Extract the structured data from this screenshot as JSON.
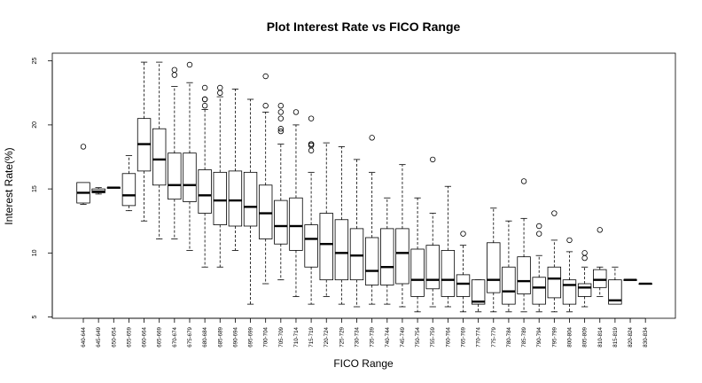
{
  "chart_data": {
    "type": "boxplot",
    "title": "Plot Interest Rate vs FICO Range",
    "xlabel": "FICO Range",
    "ylabel": "Interest Rate(%)",
    "ylim": [
      4.9,
      25.6
    ],
    "yticks": [
      5,
      10,
      15,
      20,
      25
    ],
    "categories": [
      "640-644",
      "645-649",
      "650-654",
      "655-659",
      "660-664",
      "665-669",
      "670-674",
      "675-679",
      "680-684",
      "685-689",
      "690-694",
      "695-699",
      "700-704",
      "705-709",
      "710-714",
      "715-719",
      "720-724",
      "725-729",
      "730-734",
      "735-739",
      "740-744",
      "745-749",
      "750-754",
      "755-759",
      "760-764",
      "765-769",
      "770-774",
      "775-779",
      "780-784",
      "785-789",
      "790-794",
      "795-799",
      "800-804",
      "805-809",
      "810-814",
      "815-819",
      "820-824",
      "830-834"
    ],
    "boxes": [
      {
        "low": 13.8,
        "q1": 13.9,
        "median": 14.7,
        "q3": 15.5,
        "high": 15.5,
        "outliers": [
          18.3
        ]
      },
      {
        "low": 14.6,
        "q1": 14.7,
        "median": 14.8,
        "q3": 15.0,
        "high": 15.1,
        "outliers": []
      },
      {
        "low": 15.1,
        "q1": 15.1,
        "median": 15.1,
        "q3": 15.1,
        "high": 15.1,
        "outliers": []
      },
      {
        "low": 13.3,
        "q1": 13.7,
        "median": 14.5,
        "q3": 16.2,
        "high": 17.6,
        "outliers": []
      },
      {
        "low": 12.5,
        "q1": 16.4,
        "median": 18.5,
        "q3": 20.5,
        "high": 24.9,
        "outliers": []
      },
      {
        "low": 11.1,
        "q1": 15.3,
        "median": 17.3,
        "q3": 19.7,
        "high": 24.9,
        "outliers": []
      },
      {
        "low": 11.1,
        "q1": 14.2,
        "median": 15.3,
        "q3": 17.8,
        "high": 23.0,
        "outliers": [
          23.9,
          24.3
        ]
      },
      {
        "low": 10.2,
        "q1": 14.0,
        "median": 15.3,
        "q3": 17.8,
        "high": 23.3,
        "outliers": [
          24.7
        ]
      },
      {
        "low": 8.9,
        "q1": 13.1,
        "median": 14.5,
        "q3": 16.5,
        "high": 21.2,
        "outliers": [
          21.5,
          22.0,
          22.0,
          22.9
        ]
      },
      {
        "low": 8.9,
        "q1": 12.2,
        "median": 14.1,
        "q3": 16.3,
        "high": 22.2,
        "outliers": [
          22.5,
          22.9
        ]
      },
      {
        "low": 10.2,
        "q1": 12.1,
        "median": 14.1,
        "q3": 16.4,
        "high": 22.8,
        "outliers": []
      },
      {
        "low": 6.0,
        "q1": 12.1,
        "median": 13.6,
        "q3": 16.3,
        "high": 22.0,
        "outliers": []
      },
      {
        "low": 7.6,
        "q1": 11.1,
        "median": 13.1,
        "q3": 15.3,
        "high": 21.0,
        "outliers": [
          21.5,
          23.8
        ]
      },
      {
        "low": 7.9,
        "q1": 10.7,
        "median": 12.1,
        "q3": 14.1,
        "high": 18.5,
        "outliers": [
          19.5,
          19.7,
          20.5,
          21.0,
          21.5
        ]
      },
      {
        "low": 6.6,
        "q1": 10.2,
        "median": 12.1,
        "q3": 14.3,
        "high": 20.0,
        "outliers": [
          21.0
        ]
      },
      {
        "low": 6.0,
        "q1": 8.9,
        "median": 11.1,
        "q3": 12.2,
        "high": 16.3,
        "outliers": [
          18.0,
          18.4,
          18.5,
          18.5,
          20.5
        ]
      },
      {
        "low": 6.6,
        "q1": 7.9,
        "median": 10.7,
        "q3": 13.1,
        "high": 18.6,
        "outliers": []
      },
      {
        "low": 6.0,
        "q1": 7.9,
        "median": 10.0,
        "q3": 12.6,
        "high": 18.3,
        "outliers": []
      },
      {
        "low": 5.8,
        "q1": 7.9,
        "median": 9.8,
        "q3": 11.9,
        "high": 17.3,
        "outliers": []
      },
      {
        "low": 6.0,
        "q1": 7.5,
        "median": 8.6,
        "q3": 11.2,
        "high": 16.3,
        "outliers": [
          19.0
        ]
      },
      {
        "low": 6.0,
        "q1": 7.5,
        "median": 8.9,
        "q3": 11.9,
        "high": 14.3,
        "outliers": []
      },
      {
        "low": 5.8,
        "q1": 7.6,
        "median": 10.0,
        "q3": 11.9,
        "high": 16.9,
        "outliers": []
      },
      {
        "low": 5.4,
        "q1": 6.6,
        "median": 7.9,
        "q3": 10.3,
        "high": 14.3,
        "outliers": []
      },
      {
        "low": 5.8,
        "q1": 7.2,
        "median": 7.9,
        "q3": 10.6,
        "high": 13.1,
        "outliers": [
          17.3
        ]
      },
      {
        "low": 5.8,
        "q1": 6.6,
        "median": 7.9,
        "q3": 10.2,
        "high": 15.2,
        "outliers": []
      },
      {
        "low": 5.4,
        "q1": 6.6,
        "median": 7.6,
        "q3": 8.3,
        "high": 10.6,
        "outliers": [
          11.5
        ]
      },
      {
        "low": 5.4,
        "q1": 6.0,
        "median": 6.2,
        "q3": 7.9,
        "high": 7.9,
        "outliers": []
      },
      {
        "low": 5.4,
        "q1": 6.9,
        "median": 7.9,
        "q3": 10.8,
        "high": 13.5,
        "outliers": []
      },
      {
        "low": 5.4,
        "q1": 6.0,
        "median": 7.0,
        "q3": 8.9,
        "high": 12.5,
        "outliers": []
      },
      {
        "low": 5.4,
        "q1": 6.8,
        "median": 7.8,
        "q3": 9.7,
        "high": 12.7,
        "outliers": [
          15.6
        ]
      },
      {
        "low": 5.4,
        "q1": 6.0,
        "median": 7.3,
        "q3": 8.1,
        "high": 9.8,
        "outliers": [
          11.5,
          12.1
        ]
      },
      {
        "low": 5.4,
        "q1": 6.5,
        "median": 8.0,
        "q3": 8.9,
        "high": 11.0,
        "outliers": [
          13.1
        ]
      },
      {
        "low": 5.4,
        "q1": 6.0,
        "median": 7.5,
        "q3": 7.9,
        "high": 10.1,
        "outliers": [
          11.0
        ]
      },
      {
        "low": 5.8,
        "q1": 6.6,
        "median": 7.3,
        "q3": 7.6,
        "high": 8.9,
        "outliers": [
          9.6,
          10.0
        ]
      },
      {
        "low": 6.6,
        "q1": 7.3,
        "median": 7.9,
        "q3": 8.7,
        "high": 8.9,
        "outliers": [
          11.8
        ]
      },
      {
        "low": 6.0,
        "q1": 6.0,
        "median": 6.3,
        "q3": 7.9,
        "high": 8.9,
        "outliers": []
      },
      {
        "low": 7.9,
        "q1": 7.9,
        "median": 7.9,
        "q3": 7.9,
        "high": 7.9,
        "outliers": []
      },
      {
        "low": 7.6,
        "q1": 7.6,
        "median": 7.6,
        "q3": 7.6,
        "high": 7.6,
        "outliers": []
      }
    ]
  }
}
